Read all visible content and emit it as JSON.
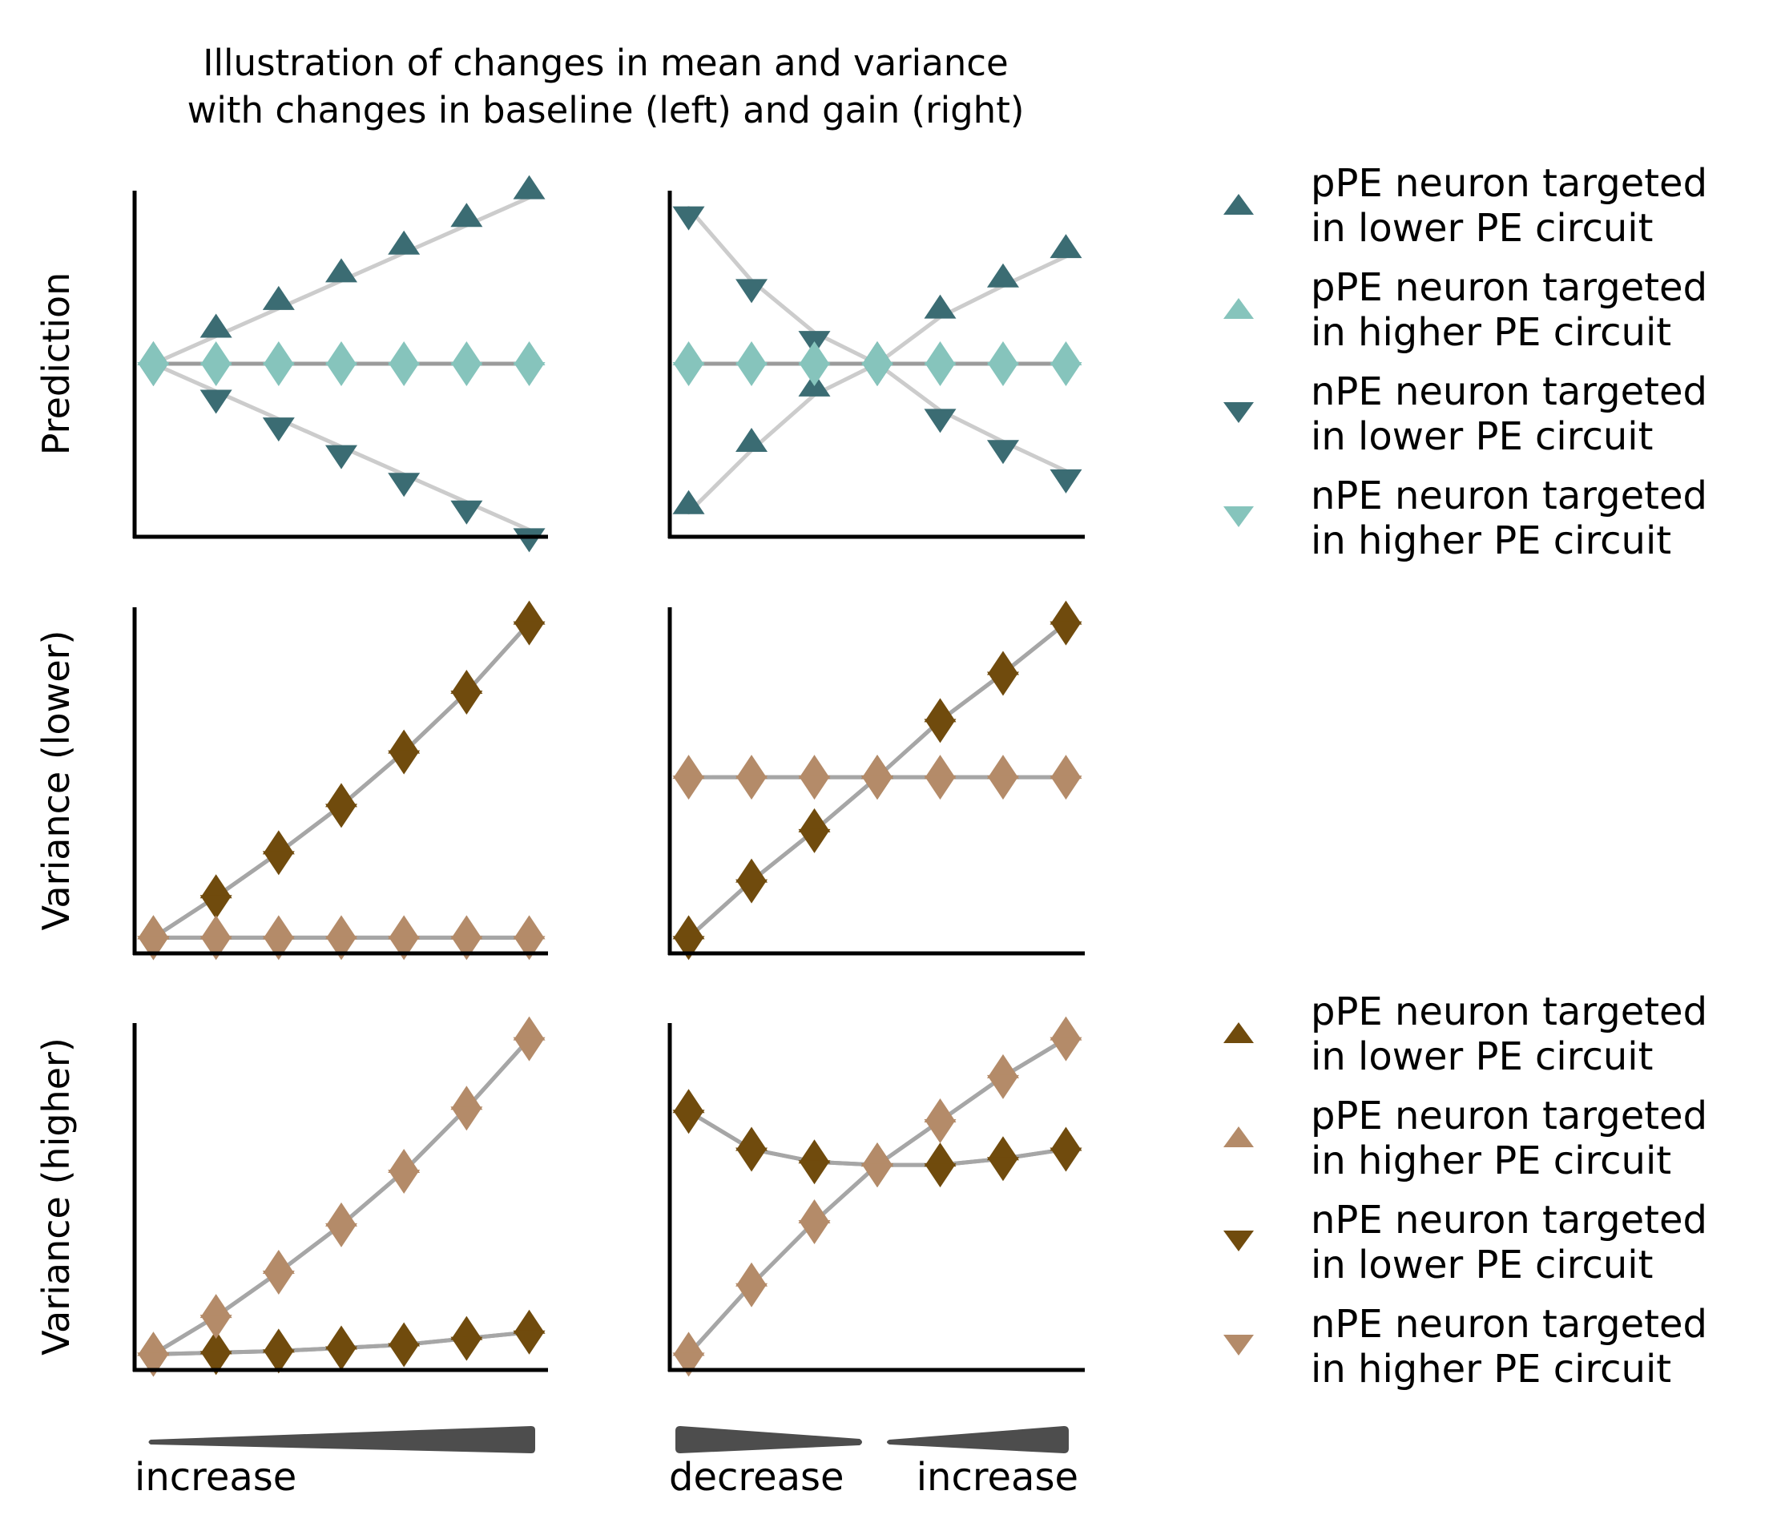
{
  "title_line1": "Illustration of changes in mean and variance",
  "title_line2": "with changes in baseline (left) and gain (right)",
  "colors": {
    "pe_lower_mean": "#3B6C73",
    "pe_higher_mean": "#86C4BC",
    "pe_lower_var": "#704B0D",
    "pe_higher_var": "#B48B69",
    "line_light": "#CCCCCC",
    "line_mid": "#A6A6A6",
    "line_dark": "#9B9B9B",
    "axis": "#000000",
    "wedge": "#4D4D4D"
  },
  "legend_top": [
    {
      "marker": "triangle-up",
      "color": "#3B6C73",
      "line1": "pPE neuron targeted",
      "line2": "in lower PE circuit"
    },
    {
      "marker": "triangle-up",
      "color": "#86C4BC",
      "line1": "pPE neuron targeted",
      "line2": "in higher PE circuit"
    },
    {
      "marker": "triangle-down",
      "color": "#3B6C73",
      "line1": "nPE neuron targeted",
      "line2": "in lower PE circuit"
    },
    {
      "marker": "triangle-down",
      "color": "#86C4BC",
      "line1": "nPE neuron targeted",
      "line2": "in higher PE circuit"
    }
  ],
  "legend_bottom": [
    {
      "marker": "triangle-up",
      "color": "#704B0D",
      "line1": "pPE neuron targeted",
      "line2": "in lower PE circuit"
    },
    {
      "marker": "triangle-up",
      "color": "#B48B69",
      "line1": "pPE neuron targeted",
      "line2": "in higher PE circuit"
    },
    {
      "marker": "triangle-down",
      "color": "#704B0D",
      "line1": "nPE neuron targeted",
      "line2": "in lower PE circuit"
    },
    {
      "marker": "triangle-down",
      "color": "#B48B69",
      "line1": "nPE neuron targeted",
      "line2": "in higher PE circuit"
    }
  ],
  "bottom_labels": {
    "left_increase": "increase",
    "right_decrease": "decrease",
    "right_increase": "increase"
  },
  "chart_data": [
    {
      "type": "line",
      "panel": "row1-left",
      "ylabel": "Prediction",
      "x": [
        0,
        1,
        2,
        3,
        4,
        5,
        6
      ],
      "xlim": [
        -0.3,
        6.3
      ],
      "ylim": [
        -1.0,
        1.0
      ],
      "series": [
        {
          "marker": "triangle-up",
          "color": "#3B6C73",
          "line_color": "#CCCCCC",
          "values": [
            0.0,
            0.16,
            0.32,
            0.48,
            0.64,
            0.8,
            0.96
          ]
        },
        {
          "marker": "triangle-down",
          "color": "#3B6C73",
          "line_color": "#CCCCCC",
          "values": [
            0.0,
            -0.16,
            -0.32,
            -0.48,
            -0.64,
            -0.8,
            -0.96
          ]
        },
        {
          "marker": "triangle-up",
          "color": "#86C4BC",
          "line_color": "#9B9B9B",
          "values": [
            0,
            0,
            0,
            0,
            0,
            0,
            0
          ]
        },
        {
          "marker": "triangle-down",
          "color": "#86C4BC",
          "line_color": "#9B9B9B",
          "values": [
            0,
            0,
            0,
            0,
            0,
            0,
            0
          ]
        }
      ]
    },
    {
      "type": "line",
      "panel": "row1-right",
      "ylabel": "",
      "x": [
        0,
        1,
        2,
        3,
        4,
        5,
        6
      ],
      "xlim": [
        -0.3,
        6.3
      ],
      "ylim": [
        -1.0,
        1.0
      ],
      "series": [
        {
          "marker": "triangle-up",
          "color": "#3B6C73",
          "line_color": "#CCCCCC",
          "values": [
            -0.86,
            -0.5,
            -0.18,
            0.0,
            0.27,
            0.45,
            0.62
          ]
        },
        {
          "marker": "triangle-down",
          "color": "#3B6C73",
          "line_color": "#CCCCCC",
          "values": [
            0.9,
            0.48,
            0.18,
            0.0,
            -0.27,
            -0.45,
            -0.62
          ]
        },
        {
          "marker": "triangle-up",
          "color": "#86C4BC",
          "line_color": "#9B9B9B",
          "values": [
            0,
            0,
            0,
            0,
            0,
            0,
            0
          ]
        },
        {
          "marker": "triangle-down",
          "color": "#86C4BC",
          "line_color": "#9B9B9B",
          "values": [
            0,
            0,
            0,
            0,
            0,
            0,
            0
          ]
        }
      ]
    },
    {
      "type": "line",
      "panel": "row2-left",
      "ylabel": "Variance (lower)",
      "x": [
        0,
        1,
        2,
        3,
        4,
        5,
        6
      ],
      "xlim": [
        -0.3,
        6.3
      ],
      "ylim": [
        -0.05,
        1.05
      ],
      "series": [
        {
          "marker": "triangle-up",
          "color": "#704B0D",
          "line_color": "#A6A6A6",
          "values": [
            0.0,
            0.13,
            0.27,
            0.42,
            0.59,
            0.78,
            1.0
          ]
        },
        {
          "marker": "triangle-down",
          "color": "#704B0D",
          "line_color": "#A6A6A6",
          "values": [
            0.0,
            0.13,
            0.27,
            0.42,
            0.59,
            0.78,
            1.0
          ]
        },
        {
          "marker": "triangle-up",
          "color": "#B48B69",
          "line_color": "#A6A6A6",
          "values": [
            0,
            0,
            0,
            0,
            0,
            0,
            0
          ]
        },
        {
          "marker": "triangle-down",
          "color": "#B48B69",
          "line_color": "#A6A6A6",
          "values": [
            0,
            0,
            0,
            0,
            0,
            0,
            0
          ]
        }
      ]
    },
    {
      "type": "line",
      "panel": "row2-right",
      "ylabel": "",
      "x": [
        0,
        1,
        2,
        3,
        4,
        5,
        6
      ],
      "xlim": [
        -0.3,
        6.3
      ],
      "ylim": [
        -0.05,
        1.05
      ],
      "series": [
        {
          "marker": "triangle-up",
          "color": "#704B0D",
          "line_color": "#A6A6A6",
          "values": [
            0.0,
            0.18,
            0.34,
            0.51,
            0.69,
            0.84,
            1.0
          ]
        },
        {
          "marker": "triangle-down",
          "color": "#704B0D",
          "line_color": "#A6A6A6",
          "values": [
            0.0,
            0.18,
            0.34,
            0.51,
            0.69,
            0.84,
            1.0
          ]
        },
        {
          "marker": "triangle-up",
          "color": "#B48B69",
          "line_color": "#A6A6A6",
          "values": [
            0.51,
            0.51,
            0.51,
            0.51,
            0.51,
            0.51,
            0.51
          ]
        },
        {
          "marker": "triangle-down",
          "color": "#B48B69",
          "line_color": "#A6A6A6",
          "values": [
            0.51,
            0.51,
            0.51,
            0.51,
            0.51,
            0.51,
            0.51
          ]
        }
      ]
    },
    {
      "type": "line",
      "panel": "row3-left",
      "ylabel": "Variance (higher)",
      "x": [
        0,
        1,
        2,
        3,
        4,
        5,
        6
      ],
      "xlim": [
        -0.3,
        6.3
      ],
      "ylim": [
        -0.05,
        1.05
      ],
      "series": [
        {
          "marker": "triangle-up",
          "color": "#704B0D",
          "line_color": "#A6A6A6",
          "values": [
            0.0,
            0.005,
            0.01,
            0.02,
            0.03,
            0.05,
            0.07
          ]
        },
        {
          "marker": "triangle-down",
          "color": "#704B0D",
          "line_color": "#A6A6A6",
          "values": [
            0.0,
            0.005,
            0.01,
            0.02,
            0.03,
            0.05,
            0.07
          ]
        },
        {
          "marker": "triangle-up",
          "color": "#B48B69",
          "line_color": "#A6A6A6",
          "values": [
            0.0,
            0.12,
            0.26,
            0.41,
            0.58,
            0.78,
            1.0
          ]
        },
        {
          "marker": "triangle-down",
          "color": "#B48B69",
          "line_color": "#A6A6A6",
          "values": [
            0.0,
            0.12,
            0.26,
            0.41,
            0.58,
            0.78,
            1.0
          ]
        }
      ]
    },
    {
      "type": "line",
      "panel": "row3-right",
      "ylabel": "",
      "x": [
        0,
        1,
        2,
        3,
        4,
        5,
        6
      ],
      "xlim": [
        -0.3,
        6.3
      ],
      "ylim": [
        -0.05,
        1.05
      ],
      "series": [
        {
          "marker": "triangle-up",
          "color": "#704B0D",
          "line_color": "#A6A6A6",
          "values": [
            0.77,
            0.65,
            0.61,
            0.6,
            0.6,
            0.62,
            0.65
          ]
        },
        {
          "marker": "triangle-down",
          "color": "#704B0D",
          "line_color": "#A6A6A6",
          "values": [
            0.77,
            0.65,
            0.61,
            0.6,
            0.6,
            0.62,
            0.65
          ]
        },
        {
          "marker": "triangle-up",
          "color": "#B48B69",
          "line_color": "#A6A6A6",
          "values": [
            0.0,
            0.22,
            0.42,
            0.6,
            0.74,
            0.88,
            1.0
          ]
        },
        {
          "marker": "triangle-down",
          "color": "#B48B69",
          "line_color": "#A6A6A6",
          "values": [
            0.0,
            0.22,
            0.42,
            0.6,
            0.74,
            0.88,
            1.0
          ]
        }
      ]
    }
  ]
}
